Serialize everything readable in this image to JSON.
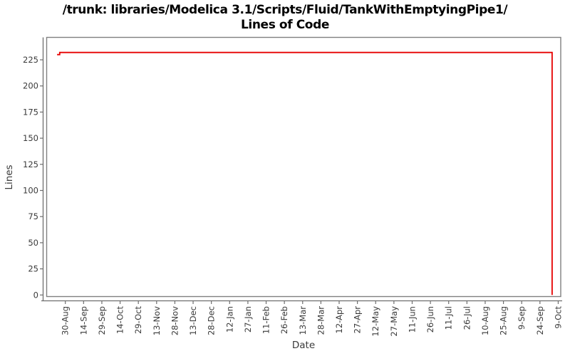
{
  "title": {
    "line1": "/trunk: libraries/Modelica 3.1/Scripts/Fluid/TankWithEmptyingPipe1/",
    "line2": "Lines of Code"
  },
  "colors": {
    "background": "#ffffff",
    "title_text": "#000000",
    "plot_border": "#808080",
    "axis_line": "#6e6e6e",
    "tick_mark": "#6e6e6e",
    "tick_label": "#3a3a3a",
    "axis_title": "#3a3a3a",
    "series_red": "#e60000"
  },
  "chart_data": {
    "type": "line",
    "title": "/trunk: libraries/Modelica 3.1/Scripts/Fluid/TankWithEmptyingPipe1/ Lines of Code",
    "xlabel": "Date",
    "ylabel": "Lines",
    "grid": false,
    "legend_position": "none",
    "y_ticks": [
      0,
      25,
      50,
      75,
      100,
      125,
      150,
      175,
      200,
      225
    ],
    "ylim": [
      0,
      238
    ],
    "x_tick_labels": [
      "30-Aug",
      "14-Sep",
      "29-Sep",
      "14-Oct",
      "29-Oct",
      "13-Nov",
      "28-Nov",
      "13-Dec",
      "28-Dec",
      "12-Jan",
      "27-Jan",
      "11-Feb",
      "26-Feb",
      "13-Mar",
      "28-Mar",
      "12-Apr",
      "27-Apr",
      "12-May",
      "27-May",
      "11-Jun",
      "26-Jun",
      "11-Jul",
      "26-Jul",
      "10-Aug",
      "25-Aug",
      "9-Sep",
      "24-Sep",
      "9-Oct"
    ],
    "x_tick_interval_days": 15,
    "series": [
      {
        "name": "Lines of Code",
        "color": "#e60000",
        "step": "after",
        "points": [
          {
            "date": "23-Aug",
            "days_from_first_tick": -6.8,
            "lines": 230
          },
          {
            "date": "26-Aug",
            "days_from_first_tick": -4.6,
            "lines": 232
          },
          {
            "date": "4-Oct",
            "days_from_first_tick": 400.0,
            "lines": 232
          },
          {
            "date": "4-Oct",
            "days_from_first_tick": 400.0,
            "lines": 0
          }
        ]
      }
    ]
  }
}
